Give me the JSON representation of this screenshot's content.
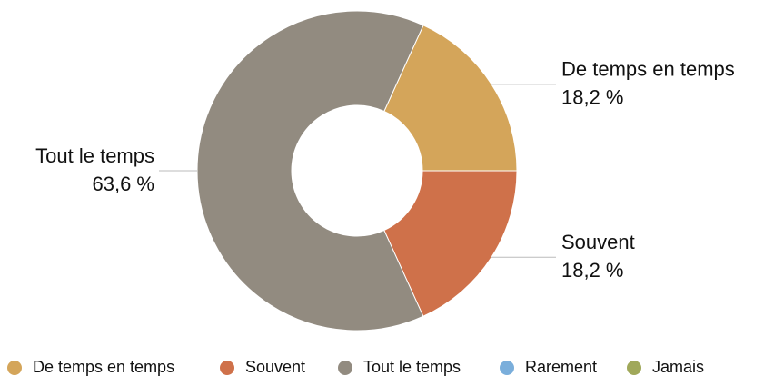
{
  "chart_data": {
    "type": "pie",
    "categories": [
      "De temps en temps",
      "Souvent",
      "Tout le temps",
      "Rarement",
      "Jamais"
    ],
    "values": [
      18.2,
      18.2,
      63.6,
      0,
      0
    ],
    "value_labels": [
      "18,2 %",
      "18,2 %",
      "63,6 %",
      null,
      null
    ],
    "colors": [
      "#d4a55a",
      "#cf714a",
      "#928b80",
      "#7aaedb",
      "#a0a85a"
    ],
    "legend": "bottom"
  }
}
